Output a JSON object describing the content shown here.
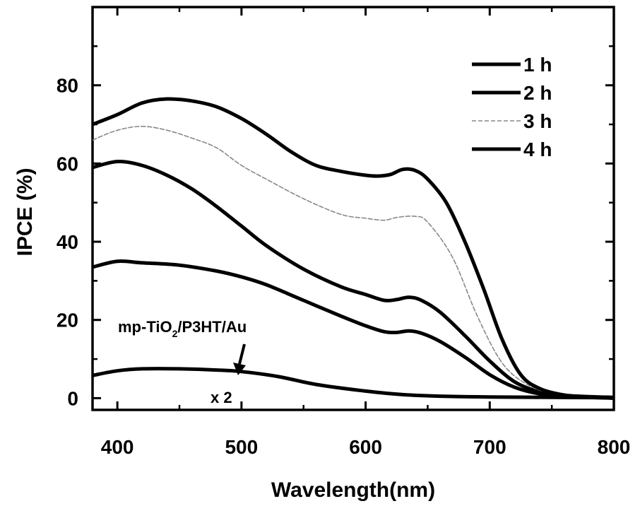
{
  "chart_data": {
    "type": "line",
    "xlabel": "Wavelength(nm)",
    "ylabel": "IPCE (%)",
    "xlim": [
      380,
      800
    ],
    "ylim": [
      -3,
      100
    ],
    "x_ticks": [
      400,
      500,
      600,
      700,
      800
    ],
    "y_ticks": [
      0,
      20,
      40,
      60,
      80
    ],
    "grid": false,
    "legend_position": "top-right",
    "series": [
      {
        "name": "1 h",
        "color": "#000000",
        "dashed": false,
        "points": [
          [
            380,
            33.5
          ],
          [
            400,
            35
          ],
          [
            420,
            34.6
          ],
          [
            450,
            34
          ],
          [
            480,
            32.5
          ],
          [
            500,
            31
          ],
          [
            520,
            29
          ],
          [
            550,
            25
          ],
          [
            580,
            21
          ],
          [
            600,
            18.5
          ],
          [
            615,
            17
          ],
          [
            625,
            16.8
          ],
          [
            635,
            17.2
          ],
          [
            645,
            16.6
          ],
          [
            660,
            14.5
          ],
          [
            680,
            10.5
          ],
          [
            700,
            6
          ],
          [
            720,
            2.8
          ],
          [
            740,
            1.1
          ],
          [
            760,
            0.4
          ],
          [
            780,
            0.2
          ],
          [
            800,
            0
          ]
        ]
      },
      {
        "name": "2 h",
        "color": "#000000",
        "dashed": false,
        "points": [
          [
            380,
            59
          ],
          [
            400,
            60.5
          ],
          [
            420,
            59.5
          ],
          [
            440,
            57
          ],
          [
            460,
            53.5
          ],
          [
            480,
            49
          ],
          [
            500,
            44
          ],
          [
            520,
            39
          ],
          [
            550,
            33
          ],
          [
            580,
            28.5
          ],
          [
            600,
            26.5
          ],
          [
            615,
            25
          ],
          [
            625,
            25.2
          ],
          [
            635,
            25.8
          ],
          [
            645,
            25
          ],
          [
            660,
            22
          ],
          [
            680,
            16
          ],
          [
            700,
            9.5
          ],
          [
            720,
            4.2
          ],
          [
            740,
            1.6
          ],
          [
            760,
            0.6
          ],
          [
            780,
            0.3
          ],
          [
            800,
            0
          ]
        ]
      },
      {
        "name": "3 h",
        "color": "#888888",
        "dashed": true,
        "points": [
          [
            380,
            66
          ],
          [
            400,
            68.5
          ],
          [
            420,
            69.5
          ],
          [
            440,
            68.5
          ],
          [
            460,
            66.5
          ],
          [
            480,
            64
          ],
          [
            500,
            59.5
          ],
          [
            520,
            56
          ],
          [
            550,
            51
          ],
          [
            580,
            47
          ],
          [
            600,
            46
          ],
          [
            615,
            45.5
          ],
          [
            625,
            46.2
          ],
          [
            640,
            46.5
          ],
          [
            650,
            45
          ],
          [
            670,
            36
          ],
          [
            690,
            21
          ],
          [
            710,
            9
          ],
          [
            730,
            3.5
          ],
          [
            750,
            1.2
          ],
          [
            770,
            0.4
          ],
          [
            800,
            0
          ]
        ]
      },
      {
        "name": "4 h",
        "color": "#000000",
        "dashed": false,
        "points": [
          [
            380,
            70
          ],
          [
            400,
            72.5
          ],
          [
            420,
            75.5
          ],
          [
            440,
            76.5
          ],
          [
            460,
            76
          ],
          [
            480,
            74.5
          ],
          [
            500,
            71.5
          ],
          [
            520,
            67.5
          ],
          [
            540,
            63
          ],
          [
            560,
            59.5
          ],
          [
            580,
            58
          ],
          [
            600,
            57
          ],
          [
            610,
            56.8
          ],
          [
            620,
            57.2
          ],
          [
            630,
            58.5
          ],
          [
            640,
            58.2
          ],
          [
            650,
            56
          ],
          [
            665,
            50
          ],
          [
            680,
            40
          ],
          [
            695,
            28
          ],
          [
            710,
            15
          ],
          [
            725,
            6
          ],
          [
            740,
            2.5
          ],
          [
            760,
            0.8
          ],
          [
            780,
            0.4
          ],
          [
            800,
            0.2
          ]
        ]
      },
      {
        "name": "mp-TiO2/P3HT/Au x 2",
        "color": "#000000",
        "dashed": false,
        "points": [
          [
            380,
            5.8
          ],
          [
            400,
            7
          ],
          [
            420,
            7.5
          ],
          [
            450,
            7.5
          ],
          [
            480,
            7.2
          ],
          [
            500,
            6.8
          ],
          [
            530,
            5.5
          ],
          [
            560,
            3.5
          ],
          [
            600,
            1.8
          ],
          [
            630,
            0.9
          ],
          [
            660,
            0.5
          ],
          [
            700,
            0.3
          ],
          [
            750,
            0.2
          ],
          [
            800,
            0.1
          ]
        ]
      }
    ],
    "annotations": {
      "sample_main": "mp-TiO",
      "sample_sub": "2",
      "sample_rest": "/P3HT/Au",
      "multiplier": "x 2"
    }
  }
}
